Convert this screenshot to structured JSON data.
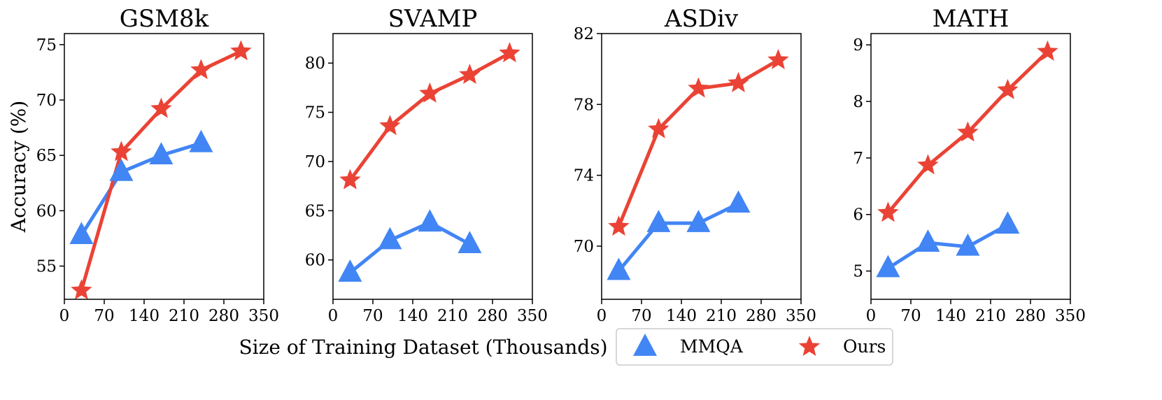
{
  "chart_data": {
    "type": "line",
    "shared": {
      "xlabel": "Size of Training Dataset (Thousands)",
      "ylabel": "Accuracy (%)",
      "xlim": [
        0,
        350
      ],
      "xticks": [
        0,
        70,
        140,
        210,
        280,
        350
      ],
      "legend": {
        "position": "bottom-center",
        "entries": [
          {
            "name": "MMQA",
            "marker": "triangle",
            "color": "#4285f4"
          },
          {
            "name": "Ours",
            "marker": "star",
            "color": "#ea4335"
          }
        ]
      }
    },
    "panels": [
      {
        "title": "GSM8k",
        "ylim": [
          52,
          76
        ],
        "yticks": [
          55,
          60,
          65,
          70,
          75
        ],
        "series": [
          {
            "name": "MMQA",
            "x": [
              30,
              100,
              170,
              240
            ],
            "values": [
              57.8,
              63.5,
              65.0,
              66.1
            ]
          },
          {
            "name": "Ours",
            "x": [
              30,
              100,
              170,
              240,
              310
            ],
            "values": [
              52.8,
              65.3,
              69.2,
              72.7,
              74.4
            ]
          }
        ]
      },
      {
        "title": "SVAMP",
        "ylim": [
          56,
          83
        ],
        "yticks": [
          60,
          65,
          70,
          75,
          80
        ],
        "series": [
          {
            "name": "MMQA",
            "x": [
              30,
              100,
              170,
              240
            ],
            "values": [
              58.7,
              62.0,
              63.8,
              61.6
            ]
          },
          {
            "name": "Ours",
            "x": [
              30,
              100,
              170,
              240,
              310
            ],
            "values": [
              68.1,
              73.6,
              76.9,
              78.8,
              81.0
            ]
          }
        ]
      },
      {
        "title": "ASDiv",
        "ylim": [
          67,
          82
        ],
        "yticks": [
          70,
          74,
          78,
          82
        ],
        "series": [
          {
            "name": "MMQA",
            "x": [
              30,
              100,
              170,
              240
            ],
            "values": [
              68.6,
              71.3,
              71.3,
              72.4
            ]
          },
          {
            "name": "Ours",
            "x": [
              30,
              100,
              170,
              240,
              310
            ],
            "values": [
              71.1,
              76.6,
              78.9,
              79.2,
              80.5
            ]
          }
        ]
      },
      {
        "title": "MATH",
        "ylim": [
          4.5,
          9.2
        ],
        "yticks": [
          5,
          6,
          7,
          8,
          9
        ],
        "series": [
          {
            "name": "MMQA",
            "x": [
              30,
              100,
              170,
              240
            ],
            "values": [
              5.05,
              5.5,
              5.43,
              5.82
            ]
          },
          {
            "name": "Ours",
            "x": [
              30,
              100,
              170,
              240,
              310
            ],
            "values": [
              6.03,
              6.87,
              7.45,
              8.2,
              8.88
            ]
          }
        ]
      }
    ]
  }
}
